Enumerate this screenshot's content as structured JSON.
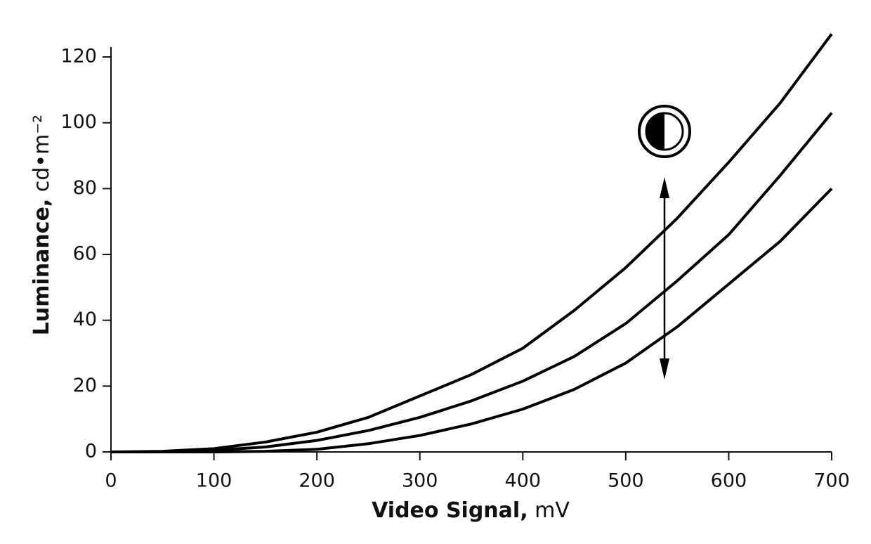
{
  "chart_data": {
    "type": "line",
    "xlabel": [
      "Video Signal,",
      "mV"
    ],
    "ylabel": [
      "Luminance,",
      "cd•m⁻²"
    ],
    "x": [
      0,
      50,
      100,
      150,
      200,
      250,
      300,
      350,
      400,
      450,
      500,
      550,
      600,
      650,
      700
    ],
    "series": [
      {
        "color": "#000000",
        "values": [
          0,
          0.2,
          1,
          3,
          6,
          10.5,
          17,
          23.5,
          31.5,
          43,
          56,
          71,
          88,
          106,
          127
        ]
      },
      {
        "color": "#000000",
        "values": [
          0,
          0,
          0.5,
          1.5,
          3.5,
          6.5,
          10.5,
          15.5,
          21.5,
          29,
          39,
          52,
          66,
          84,
          103
        ]
      },
      {
        "color": "#000000",
        "values": [
          0,
          0,
          0,
          0.2,
          0.8,
          2.5,
          5,
          8.5,
          13,
          19,
          27,
          38,
          51,
          64,
          80
        ]
      }
    ],
    "xlim": [
      0,
      700
    ],
    "xticks": [
      0,
      100,
      200,
      300,
      400,
      500,
      600,
      700
    ],
    "ylim": [
      0,
      123
    ],
    "yticks": [
      0,
      20,
      40,
      60,
      80,
      100,
      120
    ],
    "grid": false
  }
}
